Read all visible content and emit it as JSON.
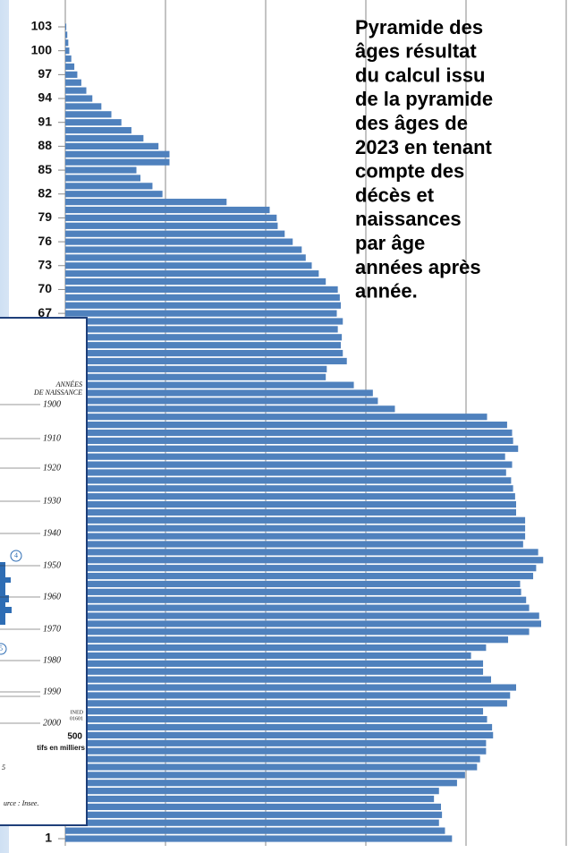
{
  "chart_data": {
    "type": "barh",
    "categories": [
      "1",
      null,
      null,
      null,
      null,
      null,
      null,
      null,
      null,
      null,
      null,
      null,
      null,
      null,
      null,
      null,
      null,
      null,
      null,
      null,
      null,
      null,
      null,
      null,
      null,
      null,
      null,
      null,
      null,
      null,
      null,
      null,
      null,
      null,
      null,
      null,
      null,
      null,
      null,
      null,
      null,
      null,
      null,
      null,
      null,
      null,
      null,
      null,
      null,
      null,
      null,
      null,
      null,
      null,
      null,
      null,
      null,
      null,
      null,
      null,
      null,
      null,
      null,
      null,
      null,
      null,
      "67",
      null,
      null,
      "70",
      null,
      null,
      "73",
      null,
      null,
      "76",
      null,
      null,
      "79",
      null,
      null,
      "82",
      null,
      null,
      "85",
      null,
      null,
      "88",
      null,
      null,
      "91",
      null,
      null,
      "94",
      null,
      null,
      "97",
      null,
      null,
      "100",
      null,
      null,
      "103"
    ],
    "values": [
      386,
      379,
      373,
      376,
      375,
      368,
      373,
      391,
      399,
      411,
      414,
      420,
      420,
      427,
      426,
      421,
      417,
      441,
      444,
      450,
      425,
      417,
      417,
      405,
      420,
      442,
      463,
      475,
      473,
      463,
      460,
      455,
      454,
      467,
      470,
      477,
      472,
      457,
      459,
      459,
      459,
      450,
      450,
      449,
      447,
      445,
      440,
      446,
      439,
      452,
      447,
      446,
      441,
      421,
      329,
      312,
      307,
      288,
      260,
      261,
      281,
      277,
      275,
      276,
      272,
      277,
      271,
      275,
      274,
      272,
      260,
      253,
      246,
      240,
      236,
      227,
      219,
      212,
      211,
      204,
      161,
      97,
      87,
      75,
      71,
      104,
      104,
      93,
      78,
      66,
      56,
      46,
      36,
      27,
      21,
      16,
      12,
      9,
      6,
      4,
      3,
      2,
      1
    ],
    "color": "#4f81bd",
    "xlim": [
      0,
      500
    ],
    "xticks": [
      0,
      100,
      200,
      300,
      400,
      500
    ],
    "grid": true,
    "annotation_lines": [
      "Pyramide des",
      "âges résultat",
      "du calcul issu",
      "de la pyramide",
      "des âges de",
      "2023 en tenant",
      "compte des",
      "décès et",
      "naissances",
      "par âge",
      "années après",
      "année."
    ]
  },
  "inset": {
    "heading_lines": [
      "ANNÉES",
      "DE NAISSANCE"
    ],
    "year_labels": [
      "1900",
      "1910",
      "1920",
      "1930",
      "1940",
      "1950",
      "1960",
      "1970",
      "1980",
      "1990",
      "2000"
    ],
    "markers": [
      "4",
      "5"
    ],
    "source_code_lines": [
      "INED",
      "01601"
    ],
    "scale_label": "500",
    "unit_label": "tifs en milliers",
    "note": "5",
    "source": "urce : Insee."
  }
}
